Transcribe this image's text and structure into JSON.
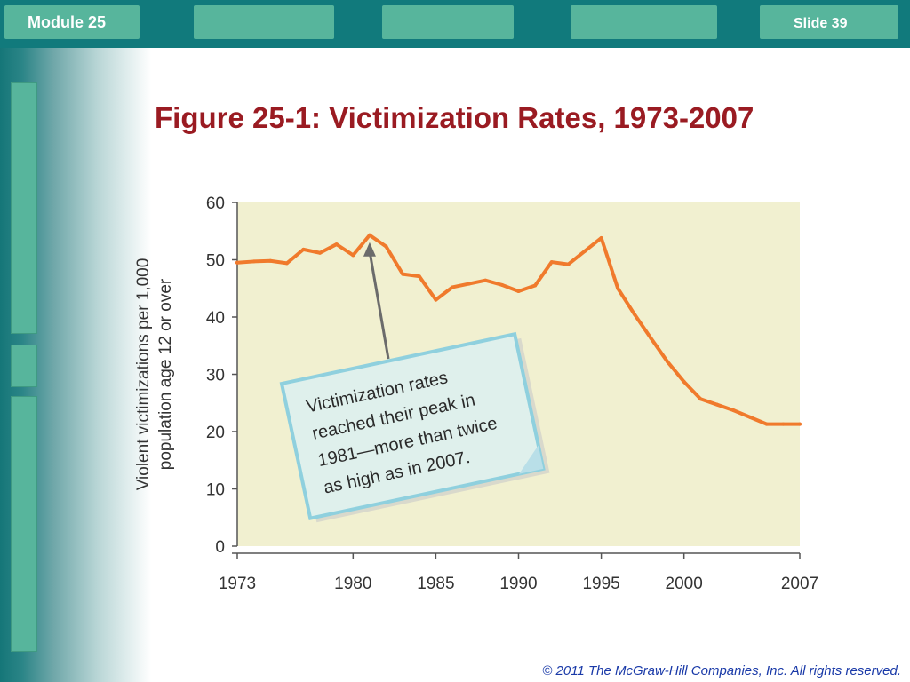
{
  "header": {
    "module_label": "Module 25",
    "slide_label": "Slide 39"
  },
  "title": "Figure 25-1: Victimization Rates, 1973-2007",
  "footer": {
    "copyright": "© 2011 The McGraw-Hill Companies, Inc. All rights reserved."
  },
  "colors": {
    "top_bar": "#117a7c",
    "tab": "#57b59c",
    "title": "#9a1b22",
    "plot_background": "#f1f0d0",
    "line": "#f07a2c",
    "callout_fill": "#dff0ec",
    "callout_border": "#8fd0de",
    "copyright": "#1a3aa8"
  },
  "chart_data": {
    "type": "line",
    "title": "",
    "xlabel": "",
    "ylabel_lines": [
      "Violent victimizations per 1,000",
      "population age 12 or over"
    ],
    "xlim": [
      1973,
      2007
    ],
    "ylim": [
      0,
      60
    ],
    "x_ticks": [
      1973,
      1980,
      1985,
      1990,
      1995,
      2000,
      2007
    ],
    "y_ticks": [
      0,
      10,
      20,
      30,
      40,
      50,
      60
    ],
    "grid": false,
    "series": [
      {
        "x": [
          1973,
          1974,
          1975,
          1976,
          1977,
          1978,
          1979,
          1980,
          1981,
          1982,
          1983,
          1984,
          1985,
          1986,
          1987,
          1988,
          1989,
          1990,
          1991,
          1992,
          1993,
          1994,
          1995,
          1996,
          1997,
          1998,
          1999,
          2000,
          2001,
          2002,
          2003,
          2004,
          2005,
          2006,
          2007
        ],
        "y": [
          49.5,
          49.7,
          49.8,
          49.4,
          51.8,
          51.2,
          52.7,
          50.8,
          54.3,
          52.3,
          47.5,
          47.1,
          43,
          45.2,
          45.8,
          46.4,
          45.6,
          44.5,
          45.5,
          49.6,
          49.2,
          51.5,
          53.8,
          45,
          40.5,
          36.3,
          32.2,
          28.7,
          25.7,
          24.7,
          23.7,
          22.5,
          21.3,
          21.3,
          21.3
        ]
      }
    ],
    "annotation": {
      "text_lines": [
        "Victimization rates",
        "reached their peak in",
        "1981—more than twice",
        "as high as in 2007."
      ],
      "points_to": {
        "x": 1981,
        "y": 54.3
      }
    }
  }
}
